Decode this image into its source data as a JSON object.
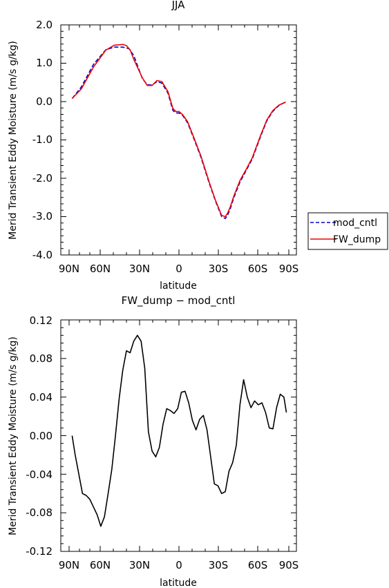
{
  "chart_data": [
    {
      "type": "line",
      "title": "JJA",
      "xlabel": "latitude",
      "ylabel": "Merid Transient Eddy Moisture (m/s g/kg)",
      "x_tick_labels": [
        "90N",
        "60N",
        "30N",
        "0",
        "30S",
        "60S",
        "90S"
      ],
      "y_tick_labels": [
        "2.0",
        "1.0",
        "0.0",
        "-1.0",
        "-2.0",
        "-3.0",
        "-4.0"
      ],
      "xlim": [
        -90,
        90
      ],
      "ylim": [
        -4.0,
        2.0
      ],
      "x_note": "x = latitude, negative = N, positive = S",
      "legend_position": "right-outside",
      "series": [
        {
          "name": "mod_cntl",
          "color": "#0000cc",
          "style": "dashed",
          "x": [
            -87.5,
            -80,
            -70,
            -60,
            -53,
            -46,
            -41,
            -37,
            -30,
            -26,
            -22,
            -18,
            -14,
            -9,
            -5,
            -2.5,
            0,
            3,
            7,
            12,
            18,
            25,
            30,
            35,
            38,
            40,
            42,
            45,
            50,
            55,
            60,
            67,
            72,
            77,
            82,
            87.5
          ],
          "y": [
            0.08,
            0.38,
            0.97,
            1.35,
            1.42,
            1.42,
            1.38,
            1.2,
            0.6,
            0.44,
            0.43,
            0.52,
            0.48,
            0.22,
            -0.23,
            -0.3,
            -0.3,
            -0.36,
            -0.55,
            -0.95,
            -1.45,
            -2.15,
            -2.6,
            -3.0,
            -3.05,
            -2.95,
            -2.8,
            -2.5,
            -2.1,
            -1.8,
            -1.5,
            -0.9,
            -0.5,
            -0.25,
            -0.1,
            -0.01
          ]
        },
        {
          "name": "FW_dump",
          "color": "#ee0000",
          "style": "solid",
          "x": [
            -87.5,
            -80,
            -70,
            -60,
            -53,
            -46,
            -43,
            -40,
            -37,
            -30,
            -26,
            -22,
            -18,
            -14,
            -9,
            -5,
            -2.5,
            0,
            3,
            7,
            12,
            18,
            25,
            30,
            35,
            38,
            40,
            42,
            45,
            50,
            55,
            60,
            67,
            72,
            77,
            82,
            87.5
          ],
          "y": [
            0.08,
            0.33,
            0.9,
            1.34,
            1.47,
            1.49,
            1.46,
            1.35,
            1.1,
            0.62,
            0.42,
            0.42,
            0.55,
            0.52,
            0.26,
            -0.18,
            -0.26,
            -0.26,
            -0.34,
            -0.52,
            -0.92,
            -1.42,
            -2.12,
            -2.58,
            -2.97,
            -3.0,
            -2.9,
            -2.75,
            -2.46,
            -2.06,
            -1.77,
            -1.47,
            -0.87,
            -0.48,
            -0.23,
            -0.09,
            -0.01
          ]
        }
      ]
    },
    {
      "type": "line",
      "title": "FW_dump − mod_cntl",
      "xlabel": "latitude",
      "ylabel": "Merid Transient Eddy Moisture (m/s g/kg)",
      "x_tick_labels": [
        "90N",
        "60N",
        "30N",
        "0",
        "30S",
        "60S",
        "90S"
      ],
      "y_tick_labels": [
        "0.12",
        "0.08",
        "0.04",
        "0.00",
        "-0.04",
        "-0.08",
        "-0.12"
      ],
      "xlim": [
        -90,
        90
      ],
      "ylim": [
        -0.12,
        0.12
      ],
      "series": [
        {
          "name": "",
          "color": "#000000",
          "style": "solid",
          "x": [
            -87.5,
            -85,
            -82,
            -79,
            -76,
            -73,
            -70,
            -67,
            -64,
            -61,
            -58,
            -55,
            -52,
            -49,
            -46,
            -43,
            -40,
            -37,
            -34,
            -31,
            -28,
            -25,
            -22,
            -19,
            -16,
            -13,
            -10,
            -7,
            -4,
            -1,
            2,
            5,
            8,
            11,
            14,
            17,
            20,
            23,
            26,
            29,
            32,
            35,
            38,
            41,
            44,
            47,
            50,
            53,
            56,
            59,
            62,
            65,
            68,
            71,
            74,
            77,
            80,
            83,
            86,
            88
          ],
          "y": [
            0.0,
            -0.02,
            -0.04,
            -0.06,
            -0.062,
            -0.066,
            -0.074,
            -0.082,
            -0.094,
            -0.084,
            -0.06,
            -0.035,
            0.0,
            0.038,
            0.068,
            0.088,
            0.086,
            0.098,
            0.104,
            0.098,
            0.07,
            0.004,
            -0.016,
            -0.022,
            -0.012,
            0.012,
            0.028,
            0.026,
            0.023,
            0.028,
            0.045,
            0.046,
            0.034,
            0.016,
            0.006,
            0.017,
            0.021,
            0.006,
            -0.022,
            -0.05,
            -0.052,
            -0.06,
            -0.058,
            -0.037,
            -0.028,
            -0.01,
            0.032,
            0.058,
            0.04,
            0.029,
            0.036,
            0.032,
            0.034,
            0.024,
            0.008,
            0.007,
            0.029,
            0.043,
            0.04,
            0.024
          ]
        }
      ]
    }
  ]
}
